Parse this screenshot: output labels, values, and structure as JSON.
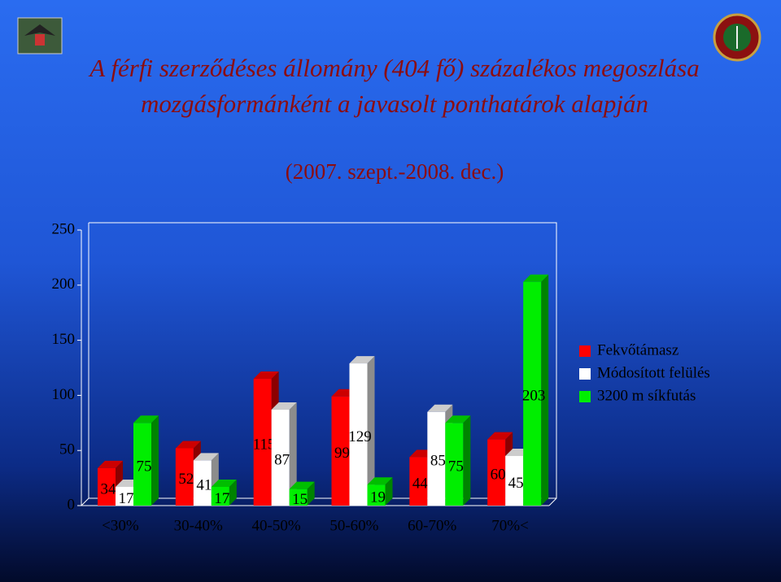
{
  "chart_data": {
    "type": "bar3d",
    "title": "A férfi szerződéses állomány (404 fő) százalékos megoszlása mozgásformánként a javasolt ponthatárok alapján",
    "subtitle": "(2007. szept.-2008. dec.)",
    "categories": [
      "<30%",
      "30-40%",
      "40-50%",
      "50-60%",
      "60-70%",
      "70%<"
    ],
    "series": [
      {
        "name": "Fekvőtámasz",
        "color": "#ff0000",
        "values": [
          34,
          52,
          115,
          99,
          44,
          60
        ]
      },
      {
        "name": "Módosított felülés",
        "color": "#ffffff",
        "values": [
          17,
          41,
          87,
          129,
          85,
          45
        ]
      },
      {
        "name": "3200 m síkfutás",
        "color": "#00ee00",
        "values": [
          75,
          17,
          15,
          19,
          75,
          203
        ]
      }
    ],
    "ylim": [
      0,
      250
    ],
    "yticks": [
      0,
      50,
      100,
      150,
      200,
      250
    ],
    "legend": "right"
  }
}
